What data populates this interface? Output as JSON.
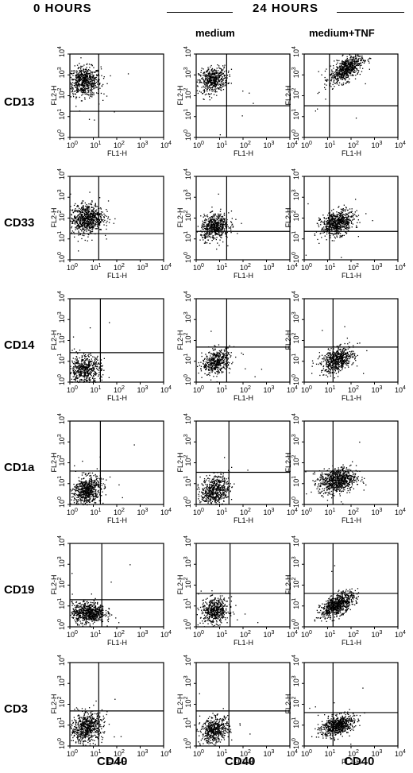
{
  "header": {
    "left": "0 HOURS",
    "right": "24 HOURS",
    "sub_medium": "medium",
    "sub_tnf": "medium+TNF"
  },
  "bottom_label": "CD40",
  "axes": {
    "x_channel": "FL1-H",
    "y_channel": "FL2-H",
    "scale": "log",
    "ticks": [
      "0",
      "1",
      "2",
      "3",
      "4"
    ],
    "tick_base": "10"
  },
  "chart_data": {
    "type": "scatter",
    "layout": "grid of 6 rows x 3 columns",
    "columns": [
      "0 HOURS",
      "medium",
      "medium+TNF"
    ],
    "rows": [
      "CD13",
      "CD33",
      "CD14",
      "CD1a",
      "CD19",
      "CD3"
    ],
    "xlabel": "CD40",
    "axis_x": "FL1-H",
    "axis_y": "FL2-H",
    "xlim": [
      1,
      10000
    ],
    "ylim": [
      1,
      10000
    ],
    "log_scale": true,
    "quadrant_markers": [
      {
        "row": "CD13",
        "col": "0 HOURS",
        "x": 17,
        "y": 18
      },
      {
        "row": "CD13",
        "col": "medium",
        "x": 20,
        "y": 33
      },
      {
        "row": "CD13",
        "col": "medium+TNF",
        "x": 12,
        "y": 33
      },
      {
        "row": "CD33",
        "col": "0 HOURS",
        "x": 17,
        "y": 18
      },
      {
        "row": "CD33",
        "col": "medium",
        "x": 20,
        "y": 23
      },
      {
        "row": "CD33",
        "col": "medium+TNF",
        "x": 12,
        "y": 23
      },
      {
        "row": "CD14",
        "col": "0 HOURS",
        "x": 20,
        "y": 26
      },
      {
        "row": "CD14",
        "col": "medium",
        "x": 20,
        "y": 48
      },
      {
        "row": "CD14",
        "col": "medium+TNF",
        "x": 17,
        "y": 48
      },
      {
        "row": "CD1a",
        "col": "0 HOURS",
        "x": 20,
        "y": 40
      },
      {
        "row": "CD1a",
        "col": "medium",
        "x": 25,
        "y": 35
      },
      {
        "row": "CD1a",
        "col": "medium+TNF",
        "x": 17,
        "y": 40
      },
      {
        "row": "CD19",
        "col": "0 HOURS",
        "x": 23,
        "y": 20
      },
      {
        "row": "CD19",
        "col": "medium",
        "x": 28,
        "y": 40
      },
      {
        "row": "CD19",
        "col": "medium+TNF",
        "x": 17,
        "y": 40
      },
      {
        "row": "CD3",
        "col": "0 HOURS",
        "x": 17,
        "y": 48
      },
      {
        "row": "CD3",
        "col": "medium",
        "x": 25,
        "y": 48
      },
      {
        "row": "CD3",
        "col": "medium+TNF",
        "x": 17,
        "y": 40
      }
    ],
    "populations": [
      {
        "row": "CD13",
        "col": "0 HOURS",
        "cx": 4,
        "cy": 500,
        "sx": 0.35,
        "sy": 0.35,
        "n": 650,
        "corr": 0
      },
      {
        "row": "CD13",
        "col": "medium",
        "cx": 5,
        "cy": 600,
        "sx": 0.3,
        "sy": 0.3,
        "n": 500,
        "corr": 0.2
      },
      {
        "row": "CD13",
        "col": "medium+TNF",
        "cx": 60,
        "cy": 2000,
        "sx": 0.35,
        "sy": 0.35,
        "n": 650,
        "corr": 0.6
      },
      {
        "row": "CD33",
        "col": "0 HOURS",
        "cx": 5,
        "cy": 100,
        "sx": 0.35,
        "sy": 0.35,
        "n": 750,
        "corr": 0.1
      },
      {
        "row": "CD33",
        "col": "medium",
        "cx": 6,
        "cy": 40,
        "sx": 0.3,
        "sy": 0.3,
        "n": 550,
        "corr": 0.2
      },
      {
        "row": "CD33",
        "col": "medium+TNF",
        "cx": 25,
        "cy": 60,
        "sx": 0.35,
        "sy": 0.3,
        "n": 650,
        "corr": 0.3
      },
      {
        "row": "CD14",
        "col": "0 HOURS",
        "cx": 4,
        "cy": 4,
        "sx": 0.35,
        "sy": 0.35,
        "n": 550,
        "corr": 0.1
      },
      {
        "row": "CD14",
        "col": "medium",
        "cx": 7,
        "cy": 10,
        "sx": 0.3,
        "sy": 0.3,
        "n": 450,
        "corr": 0.3
      },
      {
        "row": "CD14",
        "col": "medium+TNF",
        "cx": 25,
        "cy": 12,
        "sx": 0.35,
        "sy": 0.3,
        "n": 600,
        "corr": 0.4
      },
      {
        "row": "CD1a",
        "col": "0 HOURS",
        "cx": 5,
        "cy": 5,
        "sx": 0.3,
        "sy": 0.35,
        "n": 650,
        "corr": 0.2
      },
      {
        "row": "CD1a",
        "col": "medium",
        "cx": 6,
        "cy": 5,
        "sx": 0.3,
        "sy": 0.35,
        "n": 550,
        "corr": 0.2
      },
      {
        "row": "CD1a",
        "col": "medium+TNF",
        "cx": 25,
        "cy": 15,
        "sx": 0.4,
        "sy": 0.3,
        "n": 750,
        "corr": 0.2
      },
      {
        "row": "CD19",
        "col": "0 HOURS",
        "cx": 6,
        "cy": 5,
        "sx": 0.35,
        "sy": 0.25,
        "n": 700,
        "corr": 0
      },
      {
        "row": "CD19",
        "col": "medium",
        "cx": 6,
        "cy": 6,
        "sx": 0.3,
        "sy": 0.3,
        "n": 500,
        "corr": 0.1
      },
      {
        "row": "CD19",
        "col": "medium+TNF",
        "cx": 25,
        "cy": 12,
        "sx": 0.35,
        "sy": 0.3,
        "n": 700,
        "corr": 0.6
      },
      {
        "row": "CD3",
        "col": "0 HOURS",
        "cx": 5,
        "cy": 8,
        "sx": 0.35,
        "sy": 0.35,
        "n": 650,
        "corr": 0.2
      },
      {
        "row": "CD3",
        "col": "medium",
        "cx": 6,
        "cy": 6,
        "sx": 0.3,
        "sy": 0.3,
        "n": 500,
        "corr": 0.2
      },
      {
        "row": "CD3",
        "col": "medium+TNF",
        "cx": 25,
        "cy": 10,
        "sx": 0.35,
        "sy": 0.25,
        "n": 650,
        "corr": 0.4
      }
    ]
  }
}
